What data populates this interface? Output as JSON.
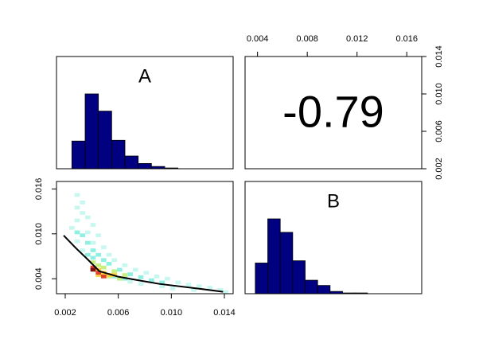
{
  "chart_data": {
    "type": "pairs",
    "hist_a": {
      "label": "A",
      "color": "#000080",
      "bins": [
        0.0025,
        0.0035,
        0.0045,
        0.0055,
        0.0065,
        0.0075,
        0.0085,
        0.0095,
        0.0105
      ],
      "counts": [
        37,
        100,
        77,
        38,
        17,
        7,
        3,
        1
      ],
      "xlim": [
        0.00134,
        0.01466
      ],
      "ylim": [
        0,
        150
      ]
    },
    "correlation": {
      "value": -0.79,
      "xlim": [
        0.003,
        0.0172
      ],
      "xticks": [
        0.004,
        0.008,
        0.012,
        0.016
      ],
      "ylim": [
        0.002,
        0.014
      ],
      "yticks": [
        0.002,
        0.006,
        {
          "value": 0.01,
          "label": "0.010"
        },
        0.014
      ]
    },
    "density": {
      "xlim": [
        0.00134,
        0.01466
      ],
      "ylim": [
        0.002,
        0.017
      ],
      "xticks": [
        0.002,
        0.006,
        {
          "value": 0.01,
          "label": "0.010"
        },
        0.014
      ],
      "yticks": [
        0.004,
        {
          "value": 0.01,
          "label": "0.010"
        },
        0.016
      ],
      "cell_width": 0.0004,
      "cell_height": 0.0005,
      "level_colors": [
        "#c8f7f0",
        "#8ef0e0",
        "#c8f080",
        "#ffd040",
        "#e04030",
        "#801010"
      ],
      "cells": {
        "x": [
          0.0029,
          0.0033,
          0.0029,
          0.0033,
          0.0037,
          0.0029,
          0.0041,
          0.0025,
          0.0037,
          0.0045,
          0.0041,
          0.0049,
          0.0053,
          0.0057,
          0.0065,
          0.0073,
          0.0081,
          0.0089,
          0.0097,
          0.0105,
          0.0113,
          0.0121,
          0.0129,
          0.0137,
          0.0141,
          0.0093,
          0.0077,
          0.0069,
          0.0117,
          0.0101,
          0.0033,
          0.0029,
          0.0033,
          0.0037,
          0.0041,
          0.0029,
          0.0045,
          0.0049,
          0.0053,
          0.0061,
          0.0069,
          0.0077,
          0.0085,
          0.0093,
          0.0065,
          0.0057,
          0.0037,
          0.0041,
          0.0041,
          0.0045,
          0.0049,
          0.0057,
          0.0065,
          0.0061,
          0.0053,
          0.0045,
          0.0049,
          0.0053,
          0.0057,
          0.0045,
          0.0045,
          0.0049,
          0.0041,
          0.0041
        ],
        "y": [
          0.0152,
          0.0142,
          0.0135,
          0.0128,
          0.0122,
          0.0118,
          0.0112,
          0.0108,
          0.0102,
          0.0098,
          0.0088,
          0.0082,
          0.0072,
          0.0065,
          0.0058,
          0.0052,
          0.0048,
          0.0043,
          0.004,
          0.0035,
          0.0032,
          0.003,
          0.0028,
          0.0025,
          0.0022,
          0.003,
          0.0033,
          0.0036,
          0.0025,
          0.0027,
          0.0078,
          0.009,
          0.0098,
          0.0088,
          0.0078,
          0.0102,
          0.0072,
          0.0065,
          0.006,
          0.0052,
          0.0046,
          0.0042,
          0.0038,
          0.0035,
          0.004,
          0.0043,
          0.0072,
          0.0068,
          0.0062,
          0.0058,
          0.0055,
          0.005,
          0.0045,
          0.004,
          0.0043,
          0.0052,
          0.0048,
          0.0045,
          0.0045,
          0.0045,
          0.0048,
          0.0043,
          0.0055,
          0.0052
        ],
        "level": [
          1,
          1,
          1,
          1,
          1,
          1,
          1,
          1,
          1,
          1,
          1,
          1,
          1,
          1,
          1,
          1,
          1,
          1,
          1,
          1,
          1,
          1,
          1,
          1,
          1,
          1,
          1,
          1,
          1,
          1,
          1,
          1,
          2,
          2,
          2,
          2,
          2,
          2,
          2,
          2,
          2,
          2,
          2,
          2,
          2,
          2,
          2,
          2,
          3,
          3,
          3,
          3,
          3,
          3,
          3,
          4,
          4,
          4,
          4,
          4,
          5,
          5,
          5,
          6
        ]
      },
      "smooth": {
        "color": "#000000",
        "x": [
          0.00188,
          0.0028,
          0.00368,
          0.00458,
          0.006,
          0.0075,
          0.0091,
          0.0121,
          0.0139
        ],
        "y": [
          0.00979,
          0.0081,
          0.0066,
          0.005,
          0.00427,
          0.0038,
          0.00331,
          0.00267,
          0.00225
        ]
      }
    },
    "hist_b": {
      "label": "B",
      "color": "#000080",
      "bins": [
        0.0038,
        0.0048,
        0.0058,
        0.0068,
        0.0078,
        0.0088,
        0.0098,
        0.0108,
        0.0118,
        0.0128
      ],
      "counts": [
        41,
        100,
        82,
        44,
        18,
        11,
        3,
        1,
        1
      ],
      "xlim": [
        0.00298,
        0.01715
      ],
      "ylim": [
        0,
        150
      ]
    }
  }
}
